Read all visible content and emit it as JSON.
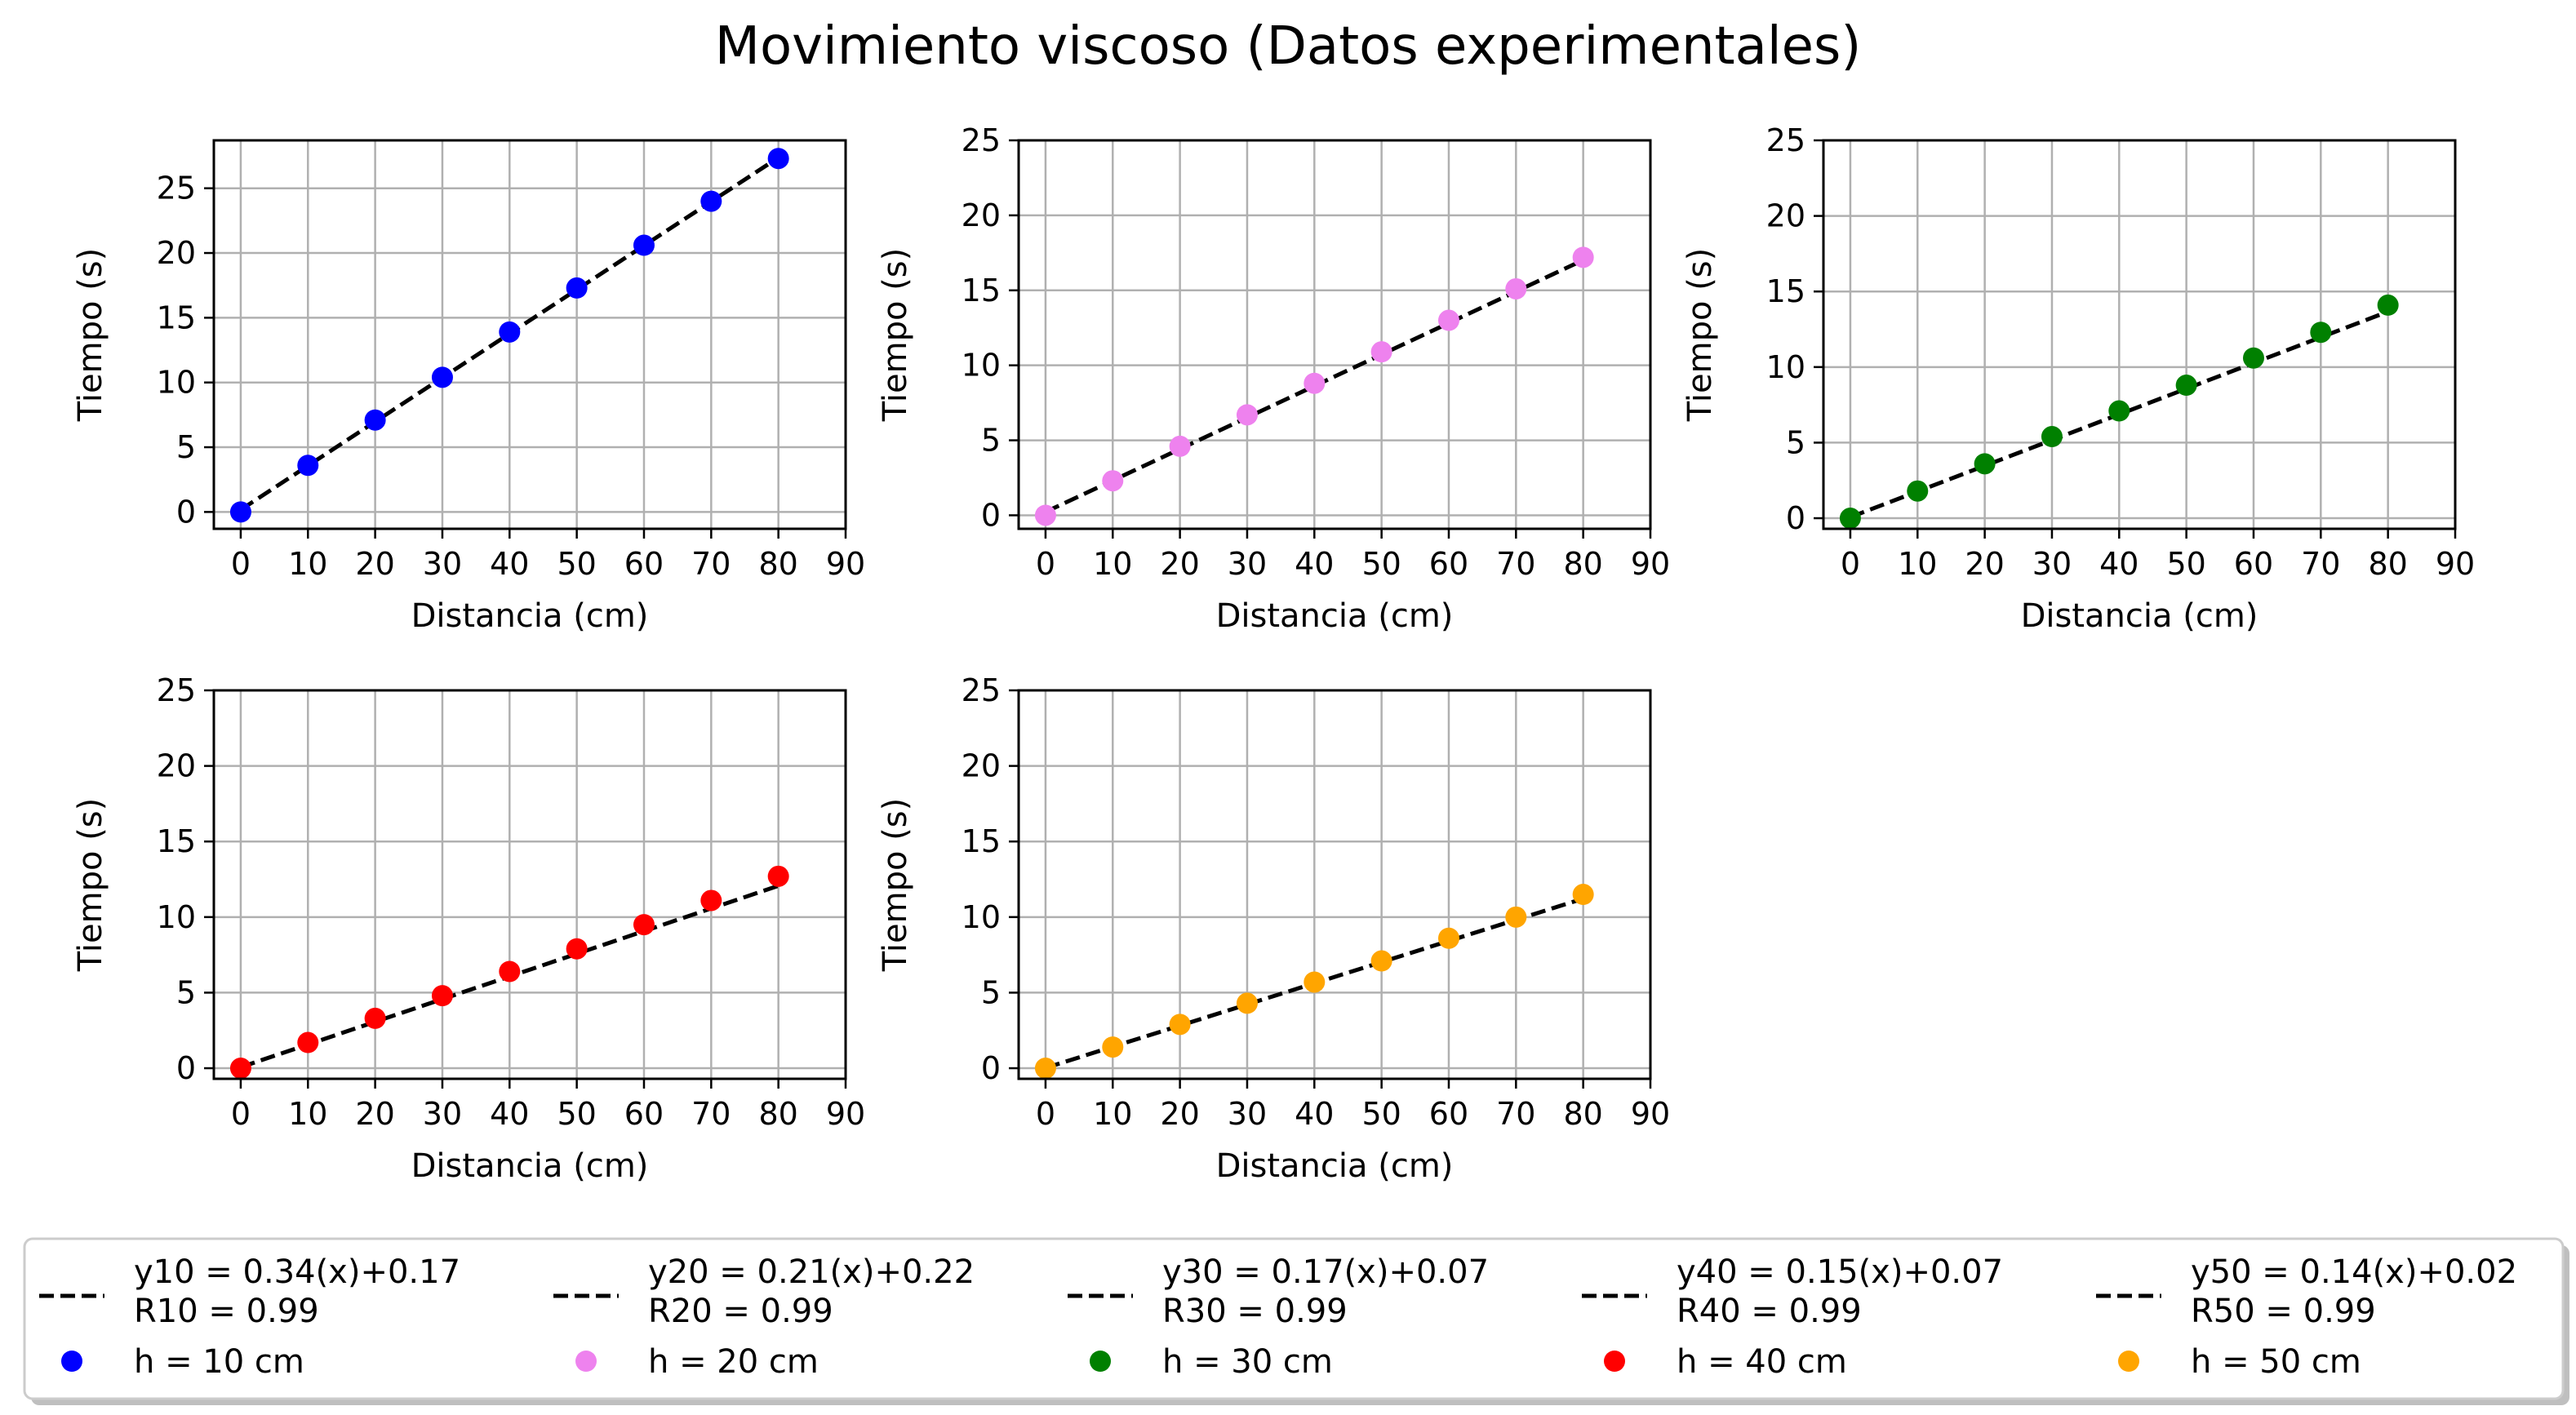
{
  "title": "Movimiento viscoso (Datos experimentales)",
  "colors": {
    "h10": "#0000ff",
    "h20": "#ee82ee",
    "h30": "#008000",
    "h40": "#ff0000",
    "h50": "#ffa500",
    "fit": "#000000",
    "grid": "#b0b0b0"
  },
  "chart_data": [
    {
      "type": "scatter",
      "xlabel": "Distancia (cm)",
      "ylabel": "Tiempo (s)",
      "xlim": [
        -4,
        90
      ],
      "ylim": [
        -1.3,
        28.7
      ],
      "xticks": [
        0,
        10,
        20,
        30,
        40,
        50,
        60,
        70,
        80,
        90
      ],
      "yticks": [
        0,
        5,
        10,
        15,
        20,
        25
      ],
      "grid": true,
      "series": [
        {
          "name": "h = 10 cm",
          "color": "#0000ff",
          "x": [
            0,
            10,
            20,
            30,
            40,
            50,
            60,
            70,
            80
          ],
          "y": [
            0,
            3.6,
            7.1,
            10.4,
            13.9,
            17.3,
            20.6,
            24.0,
            27.3
          ]
        },
        {
          "name": "y10 = 0.34(x)+0.17\n R10 = 0.99",
          "line": "dashed",
          "color": "#000000",
          "slope": 0.34,
          "intercept": 0.17,
          "x_range": [
            0,
            80
          ]
        }
      ]
    },
    {
      "type": "scatter",
      "xlabel": "Distancia (cm)",
      "ylabel": "Tiempo (s)",
      "xlim": [
        -4,
        90
      ],
      "ylim": [
        -0.9,
        25.0
      ],
      "xticks": [
        0,
        10,
        20,
        30,
        40,
        50,
        60,
        70,
        80,
        90
      ],
      "yticks": [
        0,
        5,
        10,
        15,
        20,
        25
      ],
      "grid": true,
      "series": [
        {
          "name": "h = 20 cm",
          "color": "#ee82ee",
          "x": [
            0,
            10,
            20,
            30,
            40,
            50,
            60,
            70,
            80
          ],
          "y": [
            0,
            2.3,
            4.6,
            6.7,
            8.8,
            10.9,
            13.0,
            15.1,
            17.2
          ]
        },
        {
          "name": "y20 = 0.21(x)+0.22\n R20 = 0.99",
          "line": "dashed",
          "color": "#000000",
          "slope": 0.21,
          "intercept": 0.22,
          "x_range": [
            0,
            80
          ]
        }
      ]
    },
    {
      "type": "scatter",
      "xlabel": "Distancia (cm)",
      "ylabel": "Tiempo (s)",
      "xlim": [
        -4,
        90
      ],
      "ylim": [
        -0.7,
        25.0
      ],
      "xticks": [
        0,
        10,
        20,
        30,
        40,
        50,
        60,
        70,
        80,
        90
      ],
      "yticks": [
        0,
        5,
        10,
        15,
        20,
        25
      ],
      "grid": true,
      "series": [
        {
          "name": "h = 30 cm",
          "color": "#008000",
          "x": [
            0,
            10,
            20,
            30,
            40,
            50,
            60,
            70,
            80
          ],
          "y": [
            0,
            1.8,
            3.6,
            5.4,
            7.1,
            8.8,
            10.6,
            12.3,
            14.1
          ]
        },
        {
          "name": "y30 = 0.17(x)+0.07\n R30 = 0.99",
          "line": "dashed",
          "color": "#000000",
          "slope": 0.17,
          "intercept": 0.07,
          "x_range": [
            0,
            80
          ]
        }
      ]
    },
    {
      "type": "scatter",
      "xlabel": "Distancia (cm)",
      "ylabel": "Tiempo (s)",
      "xlim": [
        -4,
        90
      ],
      "ylim": [
        -0.7,
        25.0
      ],
      "xticks": [
        0,
        10,
        20,
        30,
        40,
        50,
        60,
        70,
        80,
        90
      ],
      "yticks": [
        0,
        5,
        10,
        15,
        20,
        25
      ],
      "grid": true,
      "series": [
        {
          "name": "h = 40 cm",
          "color": "#ff0000",
          "x": [
            0,
            10,
            20,
            30,
            40,
            50,
            60,
            70,
            80
          ],
          "y": [
            0,
            1.7,
            3.3,
            4.8,
            6.4,
            7.9,
            9.5,
            11.1,
            12.7
          ]
        },
        {
          "name": "y40 = 0.15(x)+0.07\n R40 = 0.99",
          "line": "dashed",
          "color": "#000000",
          "slope": 0.15,
          "intercept": 0.07,
          "x_range": [
            0,
            80
          ]
        }
      ]
    },
    {
      "type": "scatter",
      "xlabel": "Distancia (cm)",
      "ylabel": "Tiempo (s)",
      "xlim": [
        -4,
        90
      ],
      "ylim": [
        -0.7,
        25.0
      ],
      "xticks": [
        0,
        10,
        20,
        30,
        40,
        50,
        60,
        70,
        80,
        90
      ],
      "yticks": [
        0,
        5,
        10,
        15,
        20,
        25
      ],
      "grid": true,
      "series": [
        {
          "name": "h = 50 cm",
          "color": "#ffa500",
          "x": [
            0,
            10,
            20,
            30,
            40,
            50,
            60,
            70,
            80
          ],
          "y": [
            0,
            1.4,
            2.9,
            4.3,
            5.7,
            7.1,
            8.6,
            10.0,
            11.5
          ]
        },
        {
          "name": "y50 = 0.14(x)+0.02\n R50 = 0.99",
          "line": "dashed",
          "color": "#000000",
          "slope": 0.14,
          "intercept": 0.02,
          "x_range": [
            0,
            80
          ]
        }
      ]
    }
  ],
  "legend": {
    "placement": "bottom",
    "fit_entries": [
      {
        "line1": "y10 = 0.34(x)+0.17",
        "line2": " R10 = 0.99"
      },
      {
        "line1": "y20 = 0.21(x)+0.22",
        "line2": " R20 = 0.99"
      },
      {
        "line1": "y30 = 0.17(x)+0.07",
        "line2": " R30 = 0.99"
      },
      {
        "line1": "y40 = 0.15(x)+0.07",
        "line2": " R40 = 0.99"
      },
      {
        "line1": "y50 = 0.14(x)+0.02",
        "line2": " R50 = 0.99"
      }
    ],
    "marker_entries": [
      {
        "label": "h = 10 cm",
        "color": "#0000ff"
      },
      {
        "label": "h = 20 cm",
        "color": "#ee82ee"
      },
      {
        "label": "h = 30 cm",
        "color": "#008000"
      },
      {
        "label": "h = 40 cm",
        "color": "#ff0000"
      },
      {
        "label": "h = 50 cm",
        "color": "#ffa500"
      }
    ]
  }
}
